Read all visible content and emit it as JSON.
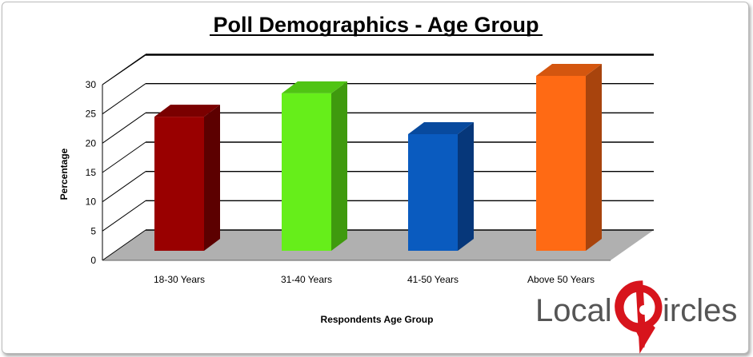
{
  "chart_data": {
    "type": "bar",
    "title": "Poll Demographics - Age Group",
    "xlabel": "Respondents Age Group",
    "ylabel": "Percentage",
    "categories": [
      "18-30 Years",
      "31-40 Years",
      "41-50 Years",
      "Above 50  Years"
    ],
    "values": [
      23,
      27,
      20,
      30
    ],
    "ylim": [
      0,
      30
    ],
    "yticks": [
      "0",
      "5",
      "10",
      "15",
      "20",
      "25",
      "30"
    ],
    "grid": true,
    "legend": "none",
    "colors": [
      {
        "front": "#990000",
        "side": "#5c0000",
        "top": "#7a0000"
      },
      {
        "front": "#66ee1a",
        "side": "#3f9a0e",
        "top": "#50c414"
      },
      {
        "front": "#0a5bbf",
        "side": "#06377a",
        "top": "#084a9e"
      },
      {
        "front": "#ff6a14",
        "side": "#a8440d",
        "top": "#d4560f"
      }
    ],
    "floor_color": "#b0b0b0"
  },
  "logo": {
    "part1": "Local",
    "part2": "ircles",
    "accent": "#d7141c",
    "text_color": "#555555"
  }
}
